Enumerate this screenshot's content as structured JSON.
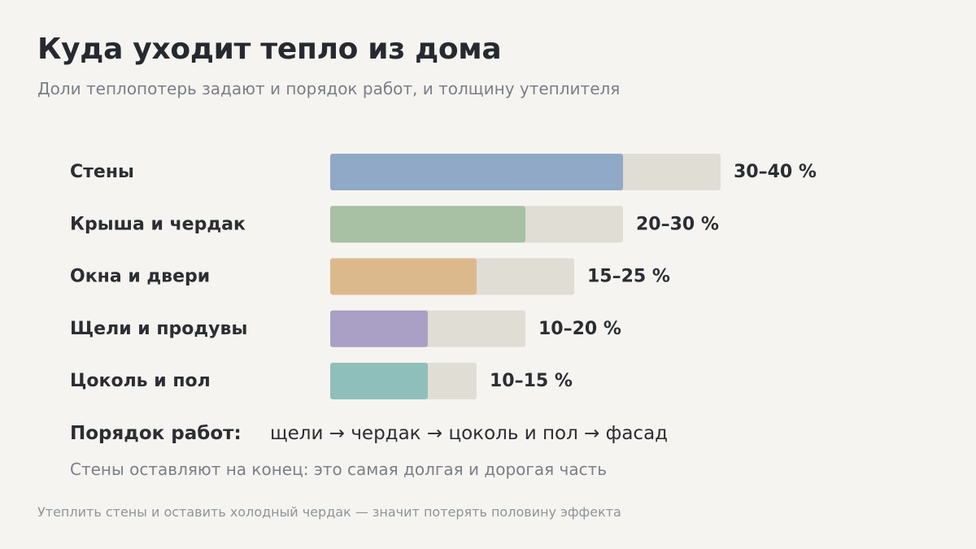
{
  "header": {
    "title": "Куда уходит тепло из дома",
    "subtitle": "Доли теплопотерь задают и порядок работ, и толщину утеплителя"
  },
  "chart_data": {
    "type": "bar",
    "orientation": "horizontal",
    "unit": "%",
    "categories": [
      "Стены",
      "Крыша и чердак",
      "Окна и двери",
      "Щели и продувы",
      "Цоколь и пол"
    ],
    "low": [
      30,
      20,
      15,
      10,
      10
    ],
    "high": [
      40,
      30,
      25,
      20,
      15
    ],
    "value_labels": [
      "30–40 %",
      "20–30 %",
      "15–25 %",
      "10–20 %",
      "10–15 %"
    ],
    "colors": [
      "#8fa9c6",
      "#a8c0a3",
      "#dcb98d",
      "#aa9fc5",
      "#8fbfbb"
    ],
    "range_color": "#e0ddd5",
    "xlim": [
      0,
      40
    ],
    "grid": false,
    "legend": "none"
  },
  "order": {
    "label": "Порядок работ:",
    "steps": "щели → чердак → цоколь и пол → фасад",
    "note": "Стены оставляют на конец: это самая долгая и дорогая часть"
  },
  "footnote": "Утеплить стены и оставить холодный чердак — значит потерять половину эффекта"
}
